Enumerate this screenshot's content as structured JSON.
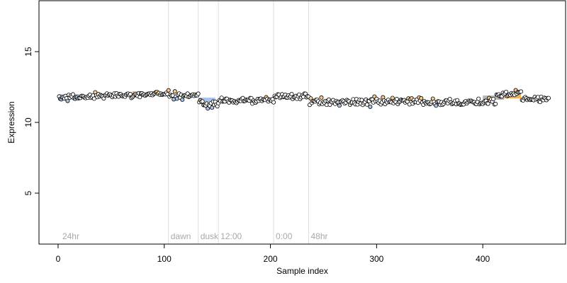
{
  "chart_data": {
    "type": "scatter",
    "title": "",
    "xlabel": "Sample index",
    "ylabel": "Expression",
    "xlim": [
      -18,
      478
    ],
    "ylim": [
      1.4,
      18.6
    ],
    "x_ticks": [
      0,
      100,
      200,
      300,
      400
    ],
    "y_ticks": [
      5,
      10,
      15
    ],
    "grid": false,
    "legend": "none",
    "colors": {
      "point_outline": "#000000",
      "neutral_fill": "#ffffff",
      "low_fill": "#a9c4ea",
      "high_fill": "#f8c98a",
      "low_bar": "#9ab8e2",
      "high_bar": "#f4a340",
      "mean_bar": "#aaaaaa",
      "phase_line": "#dddddd",
      "phase_text": "#a8a8a8"
    },
    "phase_markers": [
      {
        "label": "24hr",
        "x": 2
      },
      {
        "label": "dawn",
        "x": 104
      },
      {
        "label": "dusk",
        "x": 132
      },
      {
        "label": "12:00",
        "x": 151
      },
      {
        "label": "0:00",
        "x": 203
      },
      {
        "label": "48hr",
        "x": 236
      }
    ],
    "segments": [
      {
        "x_start": 0,
        "x_end": 104,
        "mean": 11.9,
        "amplitude": 0.2,
        "trend": 0.35
      },
      {
        "x_start": 104,
        "x_end": 132,
        "mean": 11.9,
        "amplitude": 0.25,
        "trend": 0.1
      },
      {
        "x_start": 132,
        "x_end": 151,
        "mean": 11.3,
        "amplitude": 0.3,
        "trend": -0.1
      },
      {
        "x_start": 151,
        "x_end": 203,
        "mean": 11.55,
        "amplitude": 0.2,
        "trend": 0.0
      },
      {
        "x_start": 203,
        "x_end": 236,
        "mean": 11.85,
        "amplitude": 0.2,
        "trend": 0.0
      },
      {
        "x_start": 236,
        "x_end": 412,
        "mean": 11.45,
        "amplitude": 0.25,
        "trend": 0.0
      },
      {
        "x_start": 412,
        "x_end": 436,
        "mean": 12.0,
        "amplitude": 0.2,
        "trend": 0.35
      },
      {
        "x_start": 436,
        "x_end": 462,
        "mean": 11.65,
        "amplitude": 0.2,
        "trend": 0.0
      }
    ],
    "mean_bars": [
      {
        "x_start": 0,
        "x_end": 20,
        "y": 11.85,
        "tone": "low"
      },
      {
        "x_start": 70,
        "x_end": 78,
        "y": 12.05,
        "tone": "high"
      },
      {
        "x_start": 132,
        "x_end": 148,
        "y": 11.6,
        "tone": "low"
      },
      {
        "x_start": 400,
        "x_end": 420,
        "y": 11.75,
        "tone": "mean"
      },
      {
        "x_start": 420,
        "x_end": 436,
        "y": 11.85,
        "tone": "high"
      }
    ]
  }
}
